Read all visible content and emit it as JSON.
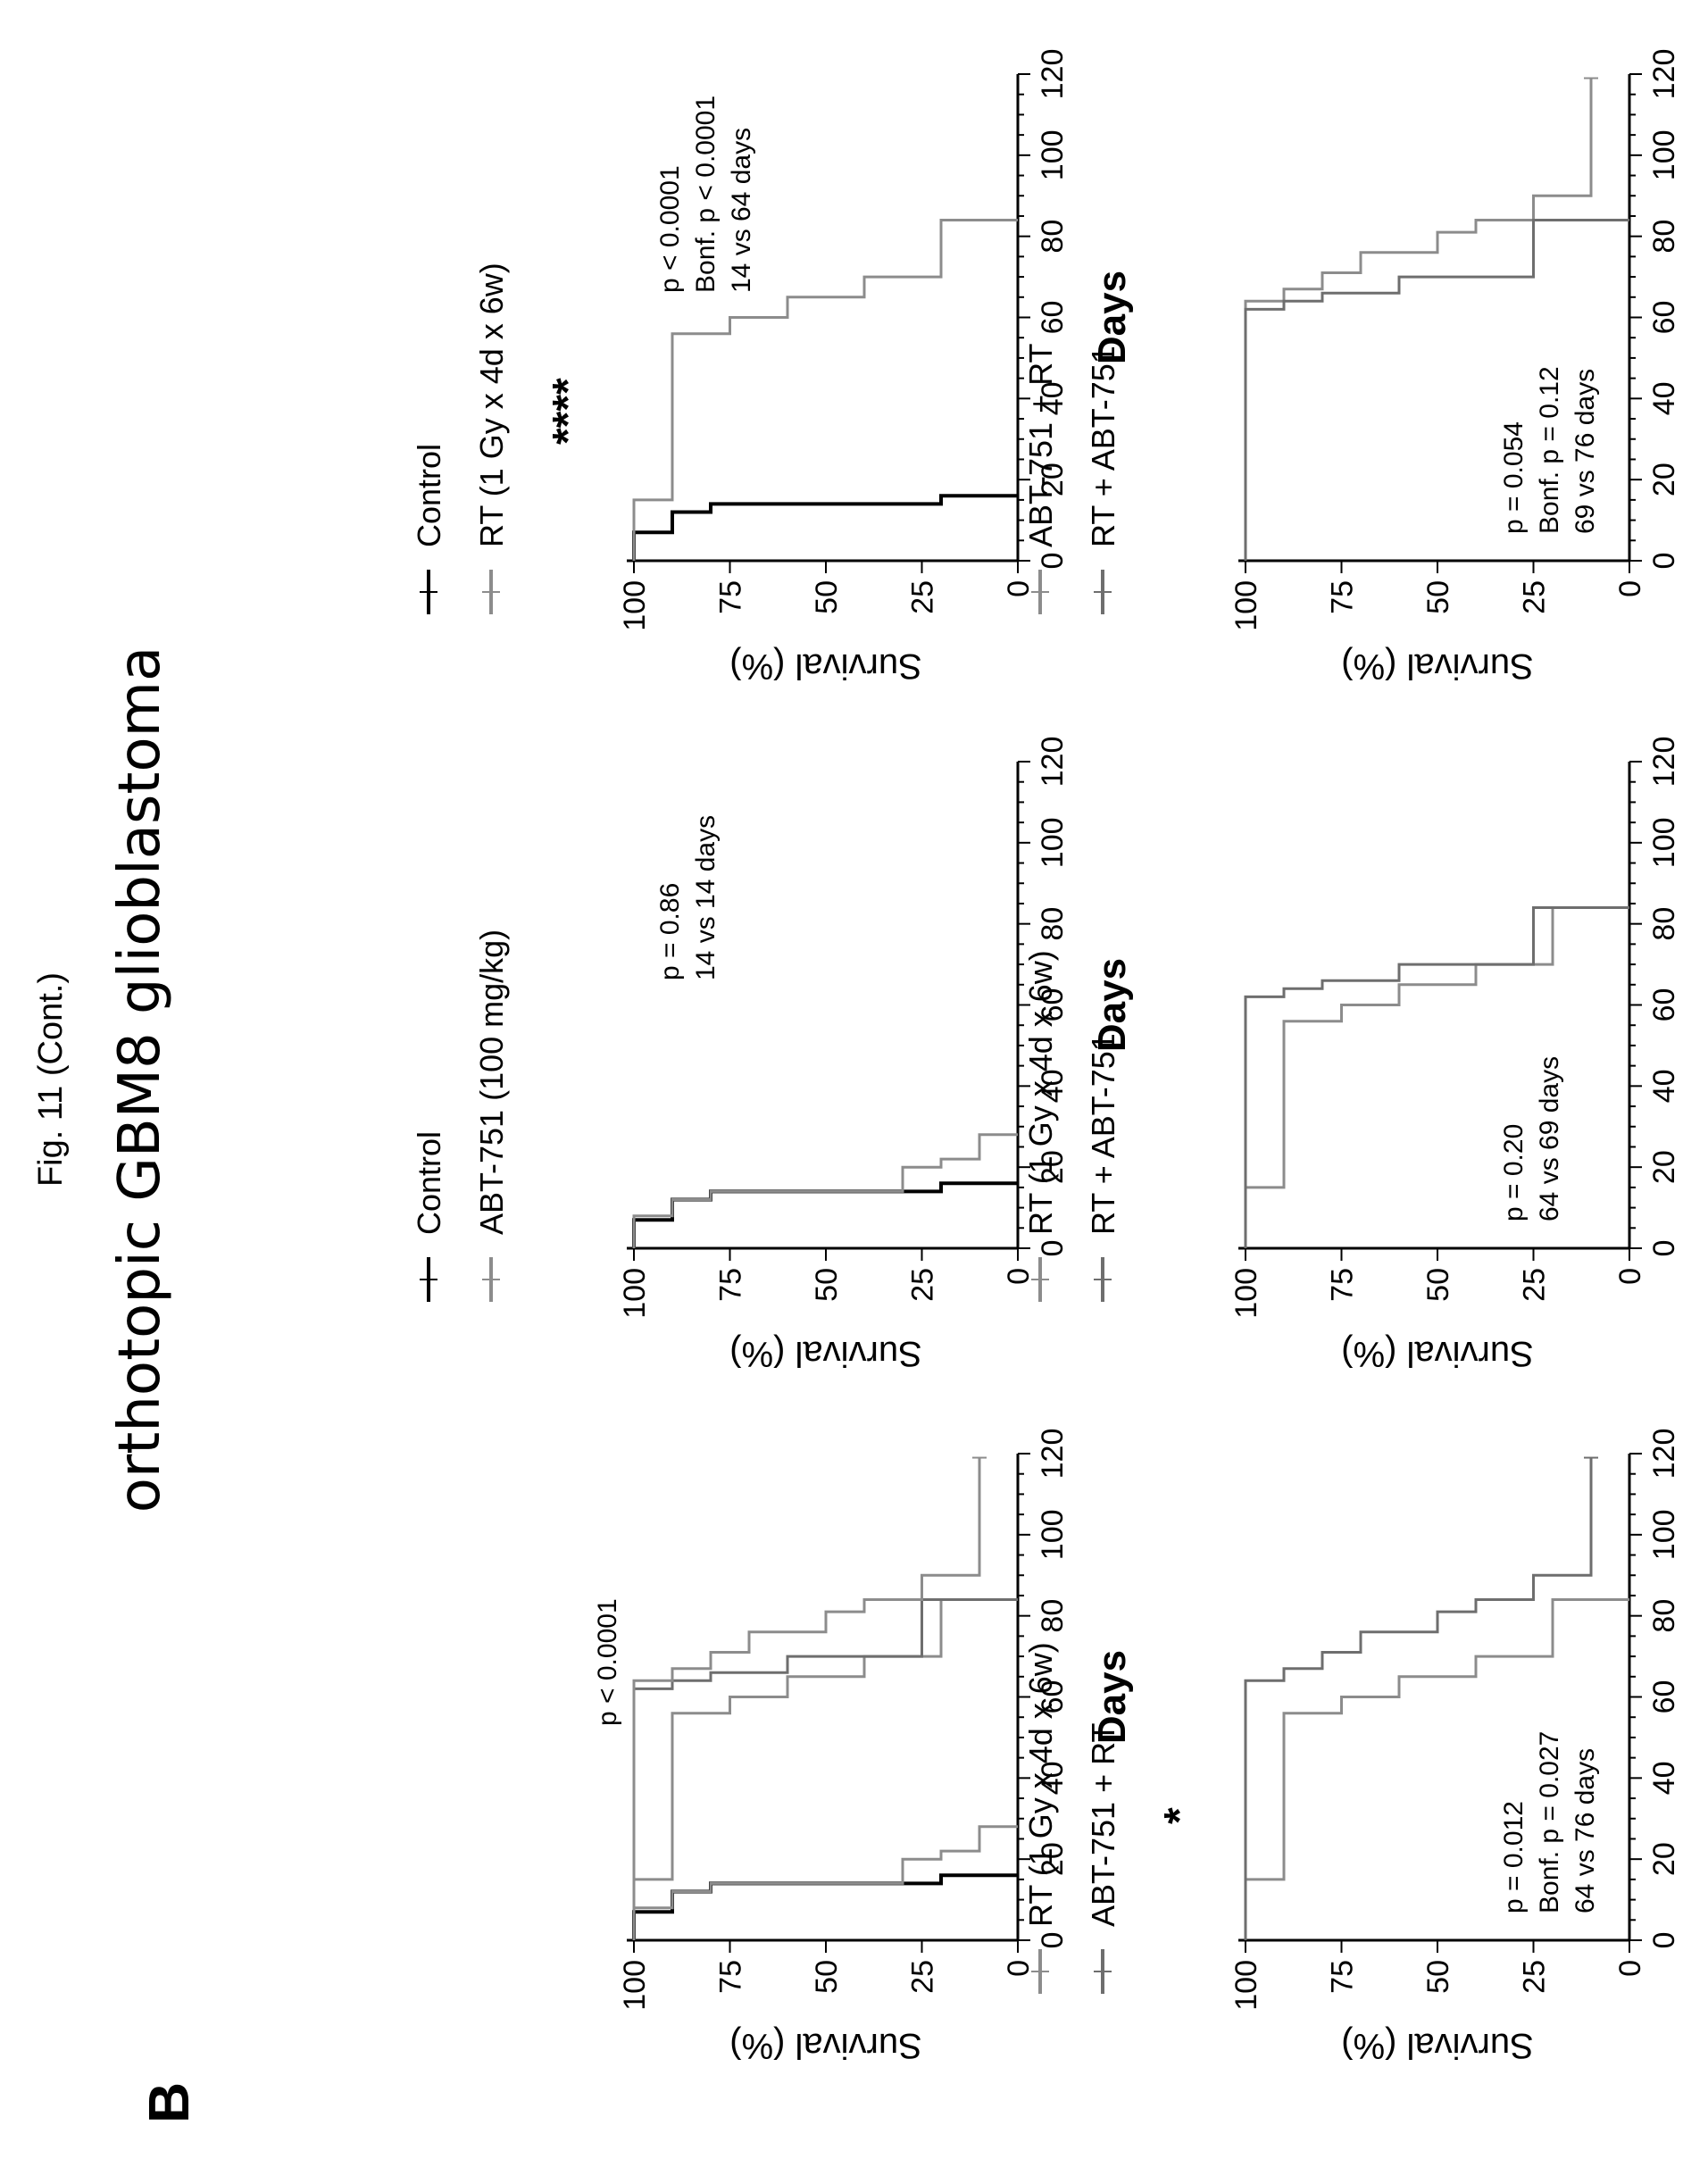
{
  "figure": {
    "caption": "Fig. 11 (Cont.)",
    "title": "orthotopic GBM8 glioblastoma",
    "panel_label": "B"
  },
  "colors": {
    "control": "#000000",
    "treated": "#8c8c8c"
  },
  "chart_data": [
    {
      "type": "line",
      "step": true,
      "xlabel": "Days",
      "ylabel": "Survival (%)",
      "xlim": [
        0,
        120
      ],
      "ylim": [
        0,
        100
      ],
      "xticks": [
        0,
        20,
        40,
        60,
        80,
        100,
        120
      ],
      "yticks": [
        0,
        25,
        50,
        75,
        100
      ],
      "legend": [],
      "annotations": [
        "p < 0.0001"
      ],
      "significance": "",
      "series": [
        {
          "color": "#000000",
          "x": [
            0,
            7,
            7,
            12,
            12,
            14,
            14,
            16,
            16
          ],
          "y": [
            100,
            100,
            90,
            90,
            80,
            80,
            20,
            20,
            0
          ]
        },
        {
          "color": "#8c8c8c",
          "x": [
            0,
            8,
            8,
            12,
            12,
            14,
            14,
            20,
            20,
            22,
            22,
            28,
            28
          ],
          "y": [
            100,
            100,
            90,
            90,
            80,
            80,
            30,
            30,
            20,
            20,
            10,
            10,
            0
          ]
        },
        {
          "color": "#8c8c8c",
          "x": [
            0,
            15,
            15,
            56,
            56,
            60,
            60,
            65,
            65,
            70,
            70,
            84,
            84
          ],
          "y": [
            100,
            100,
            90,
            90,
            75,
            75,
            60,
            60,
            40,
            40,
            20,
            20,
            0
          ]
        },
        {
          "color": "#6e6e6e",
          "x": [
            0,
            62,
            62,
            64,
            64,
            66,
            66,
            70,
            70,
            84,
            84
          ],
          "y": [
            100,
            100,
            90,
            90,
            80,
            80,
            60,
            60,
            25,
            25,
            0
          ]
        },
        {
          "color": "#8c8c8c",
          "x": [
            0,
            64,
            64,
            67,
            67,
            71,
            71,
            76,
            76,
            81,
            81,
            84,
            84,
            90,
            90,
            119
          ],
          "y": [
            100,
            100,
            90,
            90,
            80,
            80,
            70,
            70,
            50,
            50,
            40,
            40,
            25,
            25,
            10,
            10
          ]
        }
      ]
    },
    {
      "type": "line",
      "step": true,
      "xlabel": "Days",
      "ylabel": "Survival (%)",
      "xlim": [
        0,
        120
      ],
      "ylim": [
        0,
        100
      ],
      "xticks": [
        0,
        20,
        40,
        60,
        80,
        100,
        120
      ],
      "yticks": [
        0,
        25,
        50,
        75,
        100
      ],
      "legend": [
        {
          "label": "Control",
          "color": "#000000"
        },
        {
          "label": "ABT-751 (100 mg/kg)",
          "color": "#8c8c8c"
        }
      ],
      "annotations": [
        "p = 0.86",
        "14 vs 14 days"
      ],
      "significance": "",
      "series": [
        {
          "name": "Control",
          "color": "#000000",
          "x": [
            0,
            7,
            7,
            12,
            12,
            14,
            14,
            16,
            16
          ],
          "y": [
            100,
            100,
            90,
            90,
            80,
            80,
            20,
            20,
            0
          ]
        },
        {
          "name": "ABT-751 (100 mg/kg)",
          "color": "#8c8c8c",
          "x": [
            0,
            8,
            8,
            12,
            12,
            14,
            14,
            20,
            20,
            22,
            22,
            28,
            28
          ],
          "y": [
            100,
            100,
            90,
            90,
            80,
            80,
            30,
            30,
            20,
            20,
            10,
            10,
            0
          ]
        }
      ]
    },
    {
      "type": "line",
      "step": true,
      "xlabel": "Days",
      "ylabel": "Survival (%)",
      "xlim": [
        0,
        120
      ],
      "ylim": [
        0,
        100
      ],
      "xticks": [
        0,
        20,
        40,
        60,
        80,
        100,
        120
      ],
      "yticks": [
        0,
        25,
        50,
        75,
        100
      ],
      "legend": [
        {
          "label": "Control",
          "color": "#000000"
        },
        {
          "label": "RT (1 Gy x 4d x 6w)",
          "color": "#8c8c8c"
        }
      ],
      "annotations": [
        "p < 0.0001",
        "Bonf. p < 0.0001",
        "14 vs 64 days"
      ],
      "significance": "****",
      "series": [
        {
          "name": "Control",
          "color": "#000000",
          "x": [
            0,
            7,
            7,
            12,
            12,
            14,
            14,
            16,
            16
          ],
          "y": [
            100,
            100,
            90,
            90,
            80,
            80,
            20,
            20,
            0
          ]
        },
        {
          "name": "RT (1 Gy x 4d x 6w)",
          "color": "#8c8c8c",
          "x": [
            0,
            15,
            15,
            56,
            56,
            60,
            60,
            65,
            65,
            70,
            70,
            84,
            84
          ],
          "y": [
            100,
            100,
            90,
            90,
            75,
            75,
            60,
            60,
            40,
            40,
            20,
            20,
            0
          ]
        }
      ]
    },
    {
      "type": "line",
      "step": true,
      "xlabel": "Days",
      "ylabel": "Survival (%)",
      "xlim": [
        0,
        120
      ],
      "ylim": [
        0,
        100
      ],
      "xticks": [
        0,
        20,
        40,
        60,
        80,
        100,
        120
      ],
      "yticks": [
        0,
        25,
        50,
        75,
        100
      ],
      "legend": [
        {
          "label": "RT (1 Gy x 4d x 6w)",
          "color": "#8c8c8c"
        },
        {
          "label": "ABT-751 + RT",
          "color": "#6e6e6e"
        }
      ],
      "annotations": [
        "p = 0.012",
        "Bonf. p = 0.027",
        "64 vs 76 days"
      ],
      "significance": "*",
      "series": [
        {
          "name": "RT (1 Gy x 4d x 6w)",
          "color": "#8c8c8c",
          "x": [
            0,
            15,
            15,
            56,
            56,
            60,
            60,
            65,
            65,
            70,
            70,
            84,
            84
          ],
          "y": [
            100,
            100,
            90,
            90,
            75,
            75,
            60,
            60,
            40,
            40,
            20,
            20,
            0
          ]
        },
        {
          "name": "ABT-751 + RT",
          "color": "#6e6e6e",
          "x": [
            0,
            64,
            64,
            67,
            67,
            71,
            71,
            76,
            76,
            81,
            81,
            84,
            84,
            90,
            90,
            119
          ],
          "y": [
            100,
            100,
            90,
            90,
            80,
            80,
            70,
            70,
            50,
            50,
            40,
            40,
            25,
            25,
            10,
            10
          ]
        }
      ]
    },
    {
      "type": "line",
      "step": true,
      "xlabel": "Days",
      "ylabel": "Survival (%)",
      "xlim": [
        0,
        120
      ],
      "ylim": [
        0,
        100
      ],
      "xticks": [
        0,
        20,
        40,
        60,
        80,
        100,
        120
      ],
      "yticks": [
        0,
        25,
        50,
        75,
        100
      ],
      "legend": [
        {
          "label": "RT (1 Gy x 4d x 6w)",
          "color": "#8c8c8c"
        },
        {
          "label": "RT + ABT-751",
          "color": "#6e6e6e"
        }
      ],
      "annotations": [
        "p = 0.20",
        "64 vs 69 days"
      ],
      "significance": "",
      "series": [
        {
          "name": "RT (1 Gy x 4d x 6w)",
          "color": "#8c8c8c",
          "x": [
            0,
            15,
            15,
            56,
            56,
            60,
            60,
            65,
            65,
            70,
            70,
            84,
            84
          ],
          "y": [
            100,
            100,
            90,
            90,
            75,
            75,
            60,
            60,
            40,
            40,
            20,
            20,
            0
          ]
        },
        {
          "name": "RT + ABT-751",
          "color": "#6e6e6e",
          "x": [
            0,
            62,
            62,
            64,
            64,
            66,
            66,
            70,
            70,
            84,
            84
          ],
          "y": [
            100,
            100,
            90,
            90,
            80,
            80,
            60,
            60,
            25,
            25,
            0
          ]
        }
      ]
    },
    {
      "type": "line",
      "step": true,
      "xlabel": "Days",
      "ylabel": "Survival (%)",
      "xlim": [
        0,
        120
      ],
      "ylim": [
        0,
        100
      ],
      "xticks": [
        0,
        20,
        40,
        60,
        80,
        100,
        120
      ],
      "yticks": [
        0,
        25,
        50,
        75,
        100
      ],
      "legend": [
        {
          "label": "ABT-751 + RT",
          "color": "#8c8c8c"
        },
        {
          "label": "RT + ABT-751",
          "color": "#6e6e6e"
        }
      ],
      "annotations": [
        "p = 0.054",
        "Bonf. p = 0.12",
        "69 vs 76 days"
      ],
      "significance": "",
      "series": [
        {
          "name": "ABT-751 + RT",
          "color": "#8c8c8c",
          "x": [
            0,
            64,
            64,
            67,
            67,
            71,
            71,
            76,
            76,
            81,
            81,
            84,
            84,
            90,
            90,
            119
          ],
          "y": [
            100,
            100,
            90,
            90,
            80,
            80,
            70,
            70,
            50,
            50,
            40,
            40,
            25,
            25,
            10,
            10
          ]
        },
        {
          "name": "RT + ABT-751",
          "color": "#6e6e6e",
          "x": [
            0,
            62,
            62,
            64,
            64,
            66,
            66,
            70,
            70,
            84,
            84
          ],
          "y": [
            100,
            100,
            90,
            90,
            80,
            80,
            60,
            60,
            25,
            25,
            0
          ]
        }
      ]
    }
  ]
}
